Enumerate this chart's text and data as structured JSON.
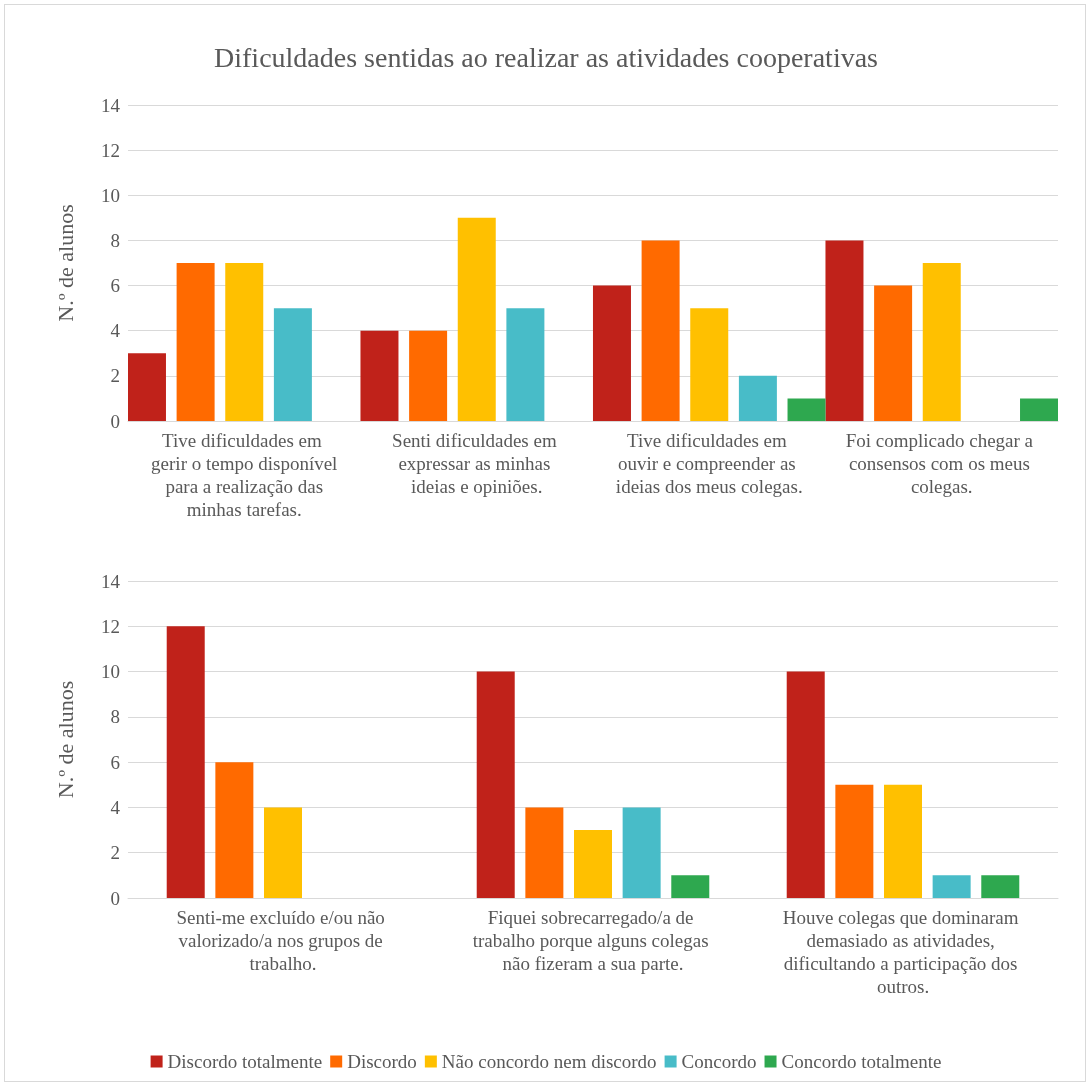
{
  "chart_data": [
    {
      "type": "bar",
      "title": "Dificuldades sentidas ao realizar as atividades cooperativas",
      "ylabel": "N.º de alunos",
      "categories": [
        "Tive dificuldades em gerir o tempo disponível para a realização das minhas tarefas.",
        "Senti dificuldades em expressar as minhas ideias e opiniões.",
        "Tive dificuldades em ouvir e compreender as ideias dos meus colegas.",
        "Foi complicado chegar a consensos com os meus colegas."
      ],
      "series": [
        {
          "color": "#c0221a",
          "values": [
            3,
            4,
            6,
            8
          ]
        },
        {
          "color": "#ff6a00",
          "values": [
            7,
            4,
            8,
            6
          ]
        },
        {
          "color": "#ffc000",
          "values": [
            7,
            9,
            5,
            7
          ]
        },
        {
          "color": "#48bcc8",
          "values": [
            5,
            5,
            2,
            0
          ]
        },
        {
          "color": "#2ea84f",
          "values": [
            0,
            0,
            1,
            1
          ]
        }
      ],
      "ylim": [
        0,
        14
      ],
      "yticks": [
        0,
        2,
        4,
        6,
        8,
        10,
        12,
        14
      ],
      "grid": "y",
      "legend": false
    },
    {
      "type": "bar",
      "ylabel": "N.º de alunos",
      "categories": [
        "Senti-me excluído e/ou não valorizado/a nos grupos de trabalho.",
        "Fiquei sobrecarregado/a de trabalho porque alguns colegas não fizeram a sua parte.",
        "Houve colegas que dominaram demasiado as atividades, dificultando a participação dos outros."
      ],
      "series": [
        {
          "name": "Discordo totalmente",
          "color": "#c0221a",
          "values": [
            12,
            10,
            10
          ]
        },
        {
          "name": "Discordo",
          "color": "#ff6a00",
          "values": [
            6,
            4,
            5
          ]
        },
        {
          "name": "Não concordo nem discordo",
          "color": "#ffc000",
          "values": [
            4,
            3,
            5
          ]
        },
        {
          "name": "Concordo",
          "color": "#48bcc8",
          "values": [
            0,
            4,
            1
          ]
        },
        {
          "name": "Concordo totalmente",
          "color": "#2ea84f",
          "values": [
            0,
            1,
            1
          ]
        }
      ],
      "ylim": [
        0,
        14
      ],
      "yticks": [
        0,
        2,
        4,
        6,
        8,
        10,
        12,
        14
      ],
      "grid": "y",
      "legend": "bottom"
    }
  ]
}
